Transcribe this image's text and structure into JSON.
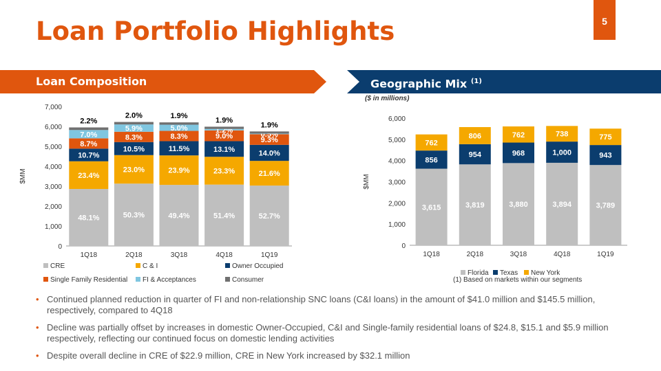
{
  "page_number": "5",
  "title": "Loan Portfolio Highlights",
  "banners": {
    "left": "Loan Composition",
    "right": "Geographic Mix",
    "right_sup": "(1)"
  },
  "units_note": "($ in millions)",
  "footnote": "(1) Based on markets within our segments",
  "colors": {
    "accent": "#e0560e",
    "navy": "#0b3d6e",
    "cre": "#bfbfbf",
    "ci": "#f5a800",
    "owner": "#0b3d6e",
    "sfr": "#e0560e",
    "fi": "#7fc6e0",
    "consumer": "#707070"
  },
  "chart_data": [
    {
      "type": "bar",
      "stacked": true,
      "title": "Loan Composition",
      "categories": [
        "1Q18",
        "2Q18",
        "3Q18",
        "4Q18",
        "1Q19"
      ],
      "ylabel": "$MM",
      "ylim": [
        0,
        7000
      ],
      "yticks": [
        "0",
        "1,000",
        "2,000",
        "3,000",
        "4,000",
        "5,000",
        "6,000",
        "7,000"
      ],
      "legend_position": "bottom",
      "series": [
        {
          "name": "CRE",
          "color": "#bfbfbf",
          "label_color": "#ffffff",
          "values": [
            2860,
            3130,
            3065,
            3080,
            3030
          ],
          "labels": [
            "48.1%",
            "50.3%",
            "49.4%",
            "51.4%",
            "52.7%"
          ]
        },
        {
          "name": "C & I",
          "color": "#f5a800",
          "label_color": "#ffffff",
          "values": [
            1390,
            1430,
            1480,
            1395,
            1240
          ],
          "labels": [
            "23.4%",
            "23.0%",
            "23.9%",
            "23.3%",
            "21.6%"
          ]
        },
        {
          "name": "Owner Occupied",
          "color": "#0b3d6e",
          "label_color": "#ffffff",
          "values": [
            635,
            655,
            715,
            785,
            805
          ],
          "labels": [
            "10.7%",
            "10.5%",
            "11.5%",
            "13.1%",
            "14.0%"
          ]
        },
        {
          "name": "Single Family Residential",
          "color": "#e0560e",
          "label_color": "#ffffff",
          "values": [
            517,
            517,
            515,
            540,
            535
          ],
          "labels": [
            "8.7%",
            "8.3%",
            "8.3%",
            "9.0%",
            "9.3%"
          ]
        },
        {
          "name": "FI & Acceptances",
          "color": "#7fc6e0",
          "label_color": "#ffffff",
          "values": [
            416,
            367,
            310,
            72,
            29
          ],
          "labels": [
            "7.0%",
            "5.9%",
            "5.0%",
            "1.2%",
            "0.5%"
          ]
        },
        {
          "name": "Consumer",
          "color": "#707070",
          "label_color": "#000000",
          "values": [
            131,
            124,
            118,
            114,
            109
          ],
          "labels": [
            "2.2%",
            "2.0%",
            "1.9%",
            "1.9%",
            "1.9%"
          ]
        }
      ]
    },
    {
      "type": "bar",
      "stacked": true,
      "title": "Geographic Mix",
      "categories": [
        "1Q18",
        "2Q18",
        "3Q18",
        "4Q18",
        "1Q19"
      ],
      "ylabel": "$MM",
      "ylim": [
        0,
        6000
      ],
      "yticks": [
        "0",
        "1,000",
        "2,000",
        "3,000",
        "4,000",
        "5,000",
        "6,000"
      ],
      "legend_position": "bottom",
      "series": [
        {
          "name": "Florida",
          "color": "#bfbfbf",
          "label_color": "#ffffff",
          "values": [
            3615,
            3819,
            3880,
            3894,
            3789
          ],
          "labels": [
            "3,615",
            "3,819",
            "3,880",
            "3,894",
            "3,789"
          ]
        },
        {
          "name": "Texas",
          "color": "#0b3d6e",
          "label_color": "#ffffff",
          "values": [
            856,
            954,
            968,
            1000,
            943
          ],
          "labels": [
            "856",
            "954",
            "968",
            "1,000",
            "943"
          ]
        },
        {
          "name": "New York",
          "color": "#f5a800",
          "label_color": "#ffffff",
          "values": [
            762,
            806,
            762,
            738,
            775
          ],
          "labels": [
            "762",
            "806",
            "762",
            "738",
            "775"
          ]
        }
      ]
    }
  ],
  "bullets": [
    "Continued planned reduction in quarter of FI and non-relationship SNC loans (C&I loans) in the amount of $41.0 million and $145.5 million, respectively, compared to 4Q18",
    "Decline was partially offset by increases in domestic Owner-Occupied, C&I and Single-family residential loans of $24.8, $15.1 and $5.9 million respectively, reflecting our continued focus on domestic lending activities",
    "Despite overall decline in CRE of $22.9 million, CRE in New York increased by $32.1 million"
  ]
}
